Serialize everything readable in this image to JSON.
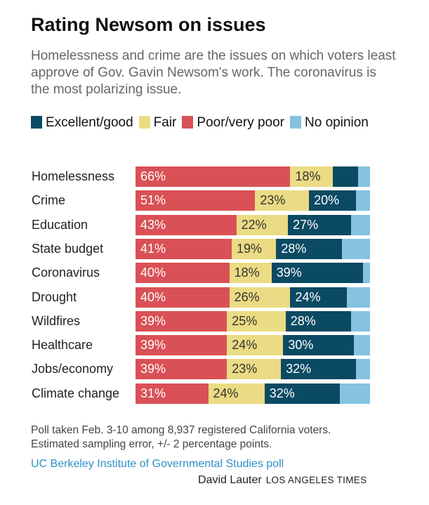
{
  "chart_data": {
    "type": "bar",
    "orientation": "horizontal",
    "stacked": true,
    "title": "Rating Newsom on issues",
    "subtitle": "Homelessness and crime are the issues on which voters least approve of Gov. Gavin Newsom's work. The coronavirus is the most polarizing issue.",
    "categories": [
      "Homelessness",
      "Crime",
      "Education",
      "State budget",
      "Coronavirus",
      "Drought",
      "Wildfires",
      "Healthcare",
      "Jobs/economy",
      "Climate change"
    ],
    "series": [
      {
        "name": "Poor/very poor",
        "color": "#d95156",
        "values": [
          66,
          51,
          43,
          41,
          40,
          40,
          39,
          39,
          39,
          31
        ],
        "labeled": [
          true,
          true,
          true,
          true,
          true,
          true,
          true,
          true,
          true,
          true
        ]
      },
      {
        "name": "Fair",
        "color": "#ebdb84",
        "values": [
          18,
          23,
          22,
          19,
          18,
          26,
          25,
          24,
          23,
          24
        ],
        "labeled": [
          true,
          true,
          true,
          true,
          true,
          true,
          true,
          true,
          true,
          true
        ]
      },
      {
        "name": "Excellent/good",
        "color": "#0b4a63",
        "values": [
          11,
          20,
          27,
          28,
          39,
          24,
          28,
          30,
          32,
          32
        ],
        "labeled": [
          false,
          true,
          true,
          true,
          true,
          true,
          true,
          true,
          true,
          true
        ]
      },
      {
        "name": "No opinion",
        "color": "#85c3e0",
        "values": [
          5,
          6,
          8,
          12,
          3,
          10,
          8,
          7,
          6,
          13
        ],
        "labeled": [
          false,
          false,
          false,
          false,
          false,
          false,
          false,
          false,
          false,
          false
        ]
      }
    ],
    "legend_order": [
      "Excellent/good",
      "Fair",
      "Poor/very poor",
      "No opinion"
    ],
    "legend_placement": "top",
    "xlim": [
      0,
      100
    ],
    "grid": false
  },
  "footer": {
    "note1": "Poll taken Feb. 3-10 among 8,937 registered California voters.",
    "note2": "Estimated sampling error, +/- 2 percentage points.",
    "source": "UC Berkeley Institute of Governmental Studies poll",
    "author": "David Lauter",
    "publication": "LOS ANGELES TIMES"
  }
}
